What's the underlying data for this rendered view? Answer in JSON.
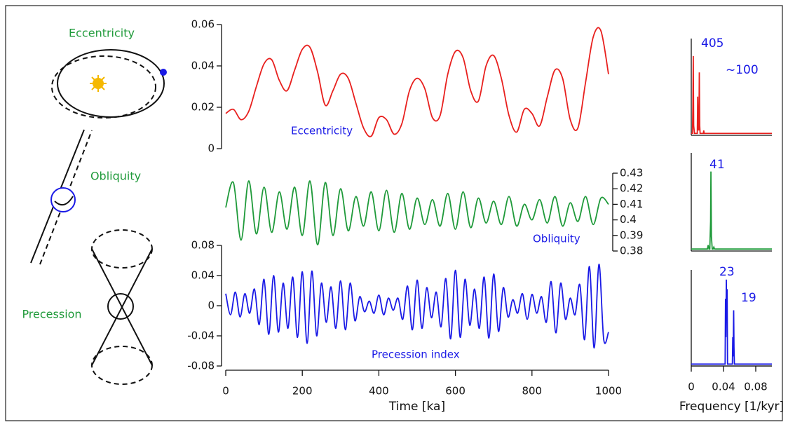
{
  "diagram": {
    "labels": [
      "Eccentricity",
      "Obliquity",
      "Precession"
    ]
  },
  "chart_data": [
    {
      "type": "line",
      "smooth": true,
      "color": "#e8201e",
      "label": "Eccentricity",
      "x": [
        0,
        20,
        40,
        60,
        80,
        100,
        120,
        140,
        160,
        180,
        200,
        220,
        240,
        260,
        280,
        300,
        320,
        340,
        360,
        380,
        400,
        420,
        440,
        460,
        480,
        500,
        520,
        540,
        560,
        580,
        600,
        620,
        640,
        660,
        680,
        700,
        720,
        740,
        760,
        780,
        800,
        820,
        840,
        860,
        880,
        900,
        920,
        940,
        960,
        980,
        1000
      ],
      "values": [
        0.017,
        0.019,
        0.014,
        0.018,
        0.03,
        0.041,
        0.043,
        0.033,
        0.028,
        0.038,
        0.048,
        0.049,
        0.037,
        0.021,
        0.028,
        0.036,
        0.034,
        0.022,
        0.01,
        0.006,
        0.015,
        0.014,
        0.007,
        0.012,
        0.028,
        0.034,
        0.029,
        0.015,
        0.016,
        0.036,
        0.047,
        0.044,
        0.028,
        0.023,
        0.04,
        0.045,
        0.034,
        0.016,
        0.008,
        0.019,
        0.017,
        0.011,
        0.025,
        0.038,
        0.034,
        0.014,
        0.01,
        0.032,
        0.054,
        0.057,
        0.036
      ],
      "xlim": [
        0,
        1000
      ],
      "ylim": [
        0,
        0.06
      ],
      "yticks": [
        0,
        0.02,
        0.04,
        0.06
      ]
    },
    {
      "type": "line",
      "smooth": true,
      "color": "#1f9a3a",
      "label": "Obliquity",
      "x": [
        0,
        20,
        40,
        60,
        80,
        100,
        120,
        140,
        160,
        180,
        200,
        220,
        240,
        260,
        280,
        300,
        320,
        340,
        360,
        380,
        400,
        420,
        440,
        460,
        480,
        500,
        520,
        540,
        560,
        580,
        600,
        620,
        640,
        660,
        680,
        700,
        720,
        740,
        760,
        780,
        800,
        820,
        840,
        860,
        880,
        900,
        920,
        940,
        960,
        980,
        1000
      ],
      "values": [
        0.408,
        0.424,
        0.387,
        0.425,
        0.391,
        0.421,
        0.392,
        0.418,
        0.394,
        0.421,
        0.39,
        0.425,
        0.384,
        0.424,
        0.39,
        0.42,
        0.393,
        0.415,
        0.396,
        0.418,
        0.393,
        0.419,
        0.392,
        0.417,
        0.394,
        0.414,
        0.397,
        0.413,
        0.396,
        0.417,
        0.394,
        0.418,
        0.395,
        0.414,
        0.398,
        0.412,
        0.397,
        0.415,
        0.396,
        0.41,
        0.4,
        0.413,
        0.398,
        0.415,
        0.396,
        0.411,
        0.399,
        0.415,
        0.397,
        0.414,
        0.41
      ],
      "xlim": [
        0,
        1000
      ],
      "ylim": [
        0.38,
        0.43
      ],
      "yticks": [
        0.38,
        0.39,
        0.4,
        0.41,
        0.42,
        0.43
      ]
    },
    {
      "type": "line",
      "smooth": true,
      "color": "#1a1ae6",
      "label": "Precession index",
      "xlabel": "Time [ka]",
      "x": [
        0,
        12.5,
        25,
        37.5,
        50,
        62.5,
        75,
        87.5,
        100,
        112.5,
        125,
        137.5,
        150,
        162.5,
        175,
        187.5,
        200,
        212.5,
        225,
        237.5,
        250,
        262.5,
        275,
        287.5,
        300,
        312.5,
        325,
        337.5,
        350,
        362.5,
        375,
        387.5,
        400,
        412.5,
        425,
        437.5,
        450,
        462.5,
        475,
        487.5,
        500,
        512.5,
        525,
        537.5,
        550,
        562.5,
        575,
        587.5,
        600,
        612.5,
        625,
        637.5,
        650,
        662.5,
        675,
        687.5,
        700,
        712.5,
        725,
        737.5,
        750,
        762.5,
        775,
        787.5,
        800,
        812.5,
        825,
        837.5,
        850,
        862.5,
        875,
        887.5,
        900,
        912.5,
        925,
        937.5,
        950,
        962.5,
        975,
        987.5,
        1000
      ],
      "values": [
        0.016,
        -0.012,
        0.018,
        -0.015,
        0.016,
        -0.01,
        0.022,
        -0.025,
        0.035,
        -0.038,
        0.04,
        -0.035,
        0.03,
        -0.03,
        0.038,
        -0.042,
        0.045,
        -0.05,
        0.046,
        -0.04,
        0.03,
        -0.022,
        0.025,
        -0.03,
        0.033,
        -0.032,
        0.03,
        -0.02,
        0.012,
        -0.008,
        0.006,
        -0.01,
        0.014,
        -0.012,
        0.01,
        -0.006,
        0.01,
        -0.018,
        0.026,
        -0.032,
        0.034,
        -0.03,
        0.024,
        -0.016,
        0.018,
        -0.028,
        0.036,
        -0.044,
        0.047,
        -0.042,
        0.035,
        -0.026,
        0.022,
        -0.03,
        0.038,
        -0.043,
        0.042,
        -0.034,
        0.024,
        -0.015,
        0.008,
        -0.01,
        0.016,
        -0.018,
        0.015,
        -0.01,
        0.012,
        -0.022,
        0.032,
        -0.036,
        0.03,
        -0.018,
        0.01,
        -0.012,
        0.028,
        -0.045,
        0.052,
        -0.056,
        0.055,
        -0.045,
        -0.035
      ],
      "xlim": [
        0,
        1000
      ],
      "xticks": [
        0,
        200,
        400,
        600,
        800,
        1000
      ],
      "ylim": [
        -0.08,
        0.08
      ],
      "yticks": [
        -0.08,
        -0.04,
        0,
        0.04,
        0.08
      ]
    },
    {
      "type": "line",
      "smooth": false,
      "color": "#e8201e",
      "peak_labels": [
        "405",
        "~100"
      ],
      "x": [
        0,
        0.0015,
        0.002,
        0.0025,
        0.003,
        0.004,
        0.0075,
        0.008,
        0.0085,
        0.009,
        0.0095,
        0.01,
        0.0105,
        0.011,
        0.012,
        0.015,
        0.0155,
        0.016,
        0.1
      ],
      "values": [
        0.02,
        0.02,
        0.3,
        0.82,
        0.1,
        0.02,
        0.02,
        0.4,
        0.05,
        0.3,
        0.05,
        0.65,
        0.1,
        0.02,
        0.02,
        0.02,
        0.05,
        0.02,
        0.02
      ],
      "xlim": [
        0,
        0.1
      ],
      "ylim": [
        0,
        1
      ]
    },
    {
      "type": "line",
      "smooth": false,
      "color": "#1f9a3a",
      "peak_labels": [
        "41"
      ],
      "x": [
        0,
        0.02,
        0.021,
        0.022,
        0.023,
        0.024,
        0.0244,
        0.025,
        0.026,
        0.027,
        0.028,
        0.029,
        0.1
      ],
      "values": [
        0.02,
        0.02,
        0.06,
        0.02,
        0.02,
        0.3,
        0.81,
        0.15,
        0.02,
        0.02,
        0.04,
        0.02,
        0.02
      ],
      "xlim": [
        0,
        0.1
      ],
      "ylim": [
        0,
        1
      ]
    },
    {
      "type": "line",
      "smooth": false,
      "color": "#1a1ae6",
      "peak_labels": [
        "23",
        "19"
      ],
      "xlabel": "Frequency [1/kyr]",
      "x": [
        0,
        0.042,
        0.0425,
        0.043,
        0.0435,
        0.044,
        0.0445,
        0.045,
        0.051,
        0.0515,
        0.052,
        0.0526,
        0.053,
        0.0535,
        0.1
      ],
      "values": [
        0.02,
        0.02,
        0.7,
        0.3,
        0.9,
        0.5,
        0.8,
        0.02,
        0.02,
        0.3,
        0.1,
        0.58,
        0.2,
        0.02,
        0.02
      ],
      "xlim": [
        0,
        0.1
      ],
      "xticks": [
        0,
        0.04,
        0.08
      ],
      "ylim": [
        0,
        1
      ]
    }
  ]
}
